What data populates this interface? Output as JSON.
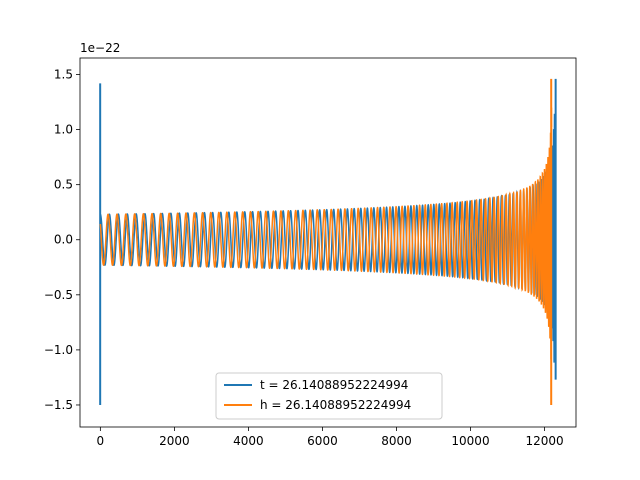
{
  "chart_data": {
    "type": "line",
    "title": "",
    "xlabel": "",
    "ylabel": "",
    "offset_text": "1e−22",
    "xlim": [
      -550,
      12850
    ],
    "ylim": [
      -1.7,
      1.65
    ],
    "x_ticks": [
      0,
      2000,
      4000,
      6000,
      8000,
      10000,
      12000
    ],
    "x_tick_labels": [
      "0",
      "2000",
      "4000",
      "6000",
      "8000",
      "10000",
      "12000"
    ],
    "y_ticks": [
      -1.5,
      -1.0,
      -0.5,
      0.0,
      0.5,
      1.0,
      1.5
    ],
    "y_tick_labels": [
      "−1.5",
      "−1.0",
      "−0.5",
      "0.0",
      "0.5",
      "1.0",
      "1.5"
    ],
    "grid": false,
    "legend_position": "lower-center",
    "series": [
      {
        "name": "t = 26.14088952224994",
        "color": "#1f77b4",
        "spikes": [
          {
            "x": -5,
            "min": -1.5,
            "max": 1.42
          },
          {
            "x": 12300,
            "min": -1.27,
            "max": 1.46
          }
        ],
        "envelope": {
          "x_start": 0,
          "x_end": 12280,
          "base_amplitude": 0.23
        }
      },
      {
        "name": "h = 26.14088952224994",
        "color": "#ff7f0e",
        "spikes": [
          {
            "x": 12180,
            "min": -1.5,
            "max": 1.46
          }
        ],
        "envelope": {
          "x_start": 0,
          "x_end": 12200,
          "base_amplitude": 0.23
        }
      }
    ]
  }
}
